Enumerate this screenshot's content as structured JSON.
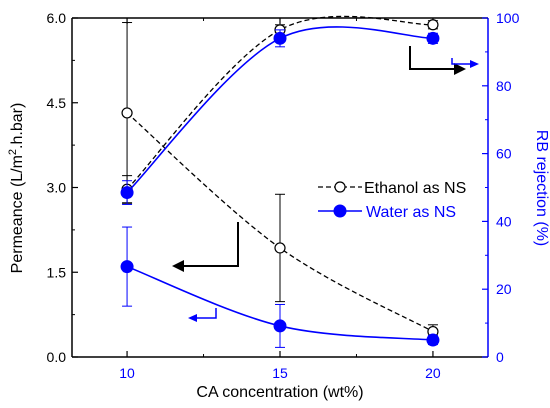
{
  "chart_data": {
    "type": "line",
    "xlabel": "CA concentration (wt%)",
    "ylabel_left": "Permeance (L/m",
    "ylabel_left_sup": "2",
    "ylabel_left_rest": ".h.bar)",
    "ylabel_right": "RB rejection (%)",
    "xlim": [
      8.2,
      21.8
    ],
    "ylim_left": [
      0,
      6
    ],
    "ylim_right": [
      0,
      100
    ],
    "x_ticks": [
      10,
      15,
      20
    ],
    "y_ticks_left": [
      0.0,
      1.5,
      3.0,
      4.5,
      6.0
    ],
    "y_ticks_left_labels": [
      "0.0",
      "1.5",
      "3.0",
      "4.5",
      "6.0"
    ],
    "y_ticks_right": [
      0,
      20,
      40,
      60,
      80,
      100
    ],
    "legend_position": "center-right",
    "colors": {
      "ethanol": "#000000",
      "water": "#0000ff",
      "axes": "#000000",
      "right_axis": "#0000ff"
    },
    "series": [
      {
        "name": "Ethanol as NS",
        "axis": "left",
        "metric": "permeance",
        "style": "dashed",
        "marker": "open-circle",
        "x": [
          10,
          15,
          20
        ],
        "y": [
          4.32,
          1.93,
          0.45
        ],
        "err": [
          1.6,
          0.95,
          0.12
        ]
      },
      {
        "name": "Ethanol as NS",
        "axis": "right",
        "metric": "rejection",
        "style": "dashed",
        "marker": "open-circle",
        "x": [
          10,
          15,
          20
        ],
        "y": [
          49.5,
          96.5,
          98.0
        ],
        "err": [
          4,
          1.5,
          1.2
        ]
      },
      {
        "name": "Water as NS",
        "axis": "left",
        "metric": "permeance",
        "style": "solid",
        "marker": "filled-circle",
        "x": [
          10,
          15,
          20
        ],
        "y": [
          1.6,
          0.55,
          0.3
        ],
        "err": [
          0.7,
          0.38,
          0.08
        ]
      },
      {
        "name": "Water as NS",
        "axis": "right",
        "metric": "rejection",
        "style": "solid",
        "marker": "filled-circle",
        "x": [
          10,
          15,
          20
        ],
        "y": [
          48.5,
          94.0,
          94.0
        ],
        "err": [
          3.5,
          2.5,
          1.5
        ]
      }
    ],
    "legend": [
      {
        "label": "Ethanol as NS",
        "style": "dashed",
        "marker": "open-circle",
        "color": "#000000"
      },
      {
        "label": "Water as NS",
        "style": "solid",
        "marker": "filled-circle",
        "color": "#0000ff"
      }
    ]
  }
}
